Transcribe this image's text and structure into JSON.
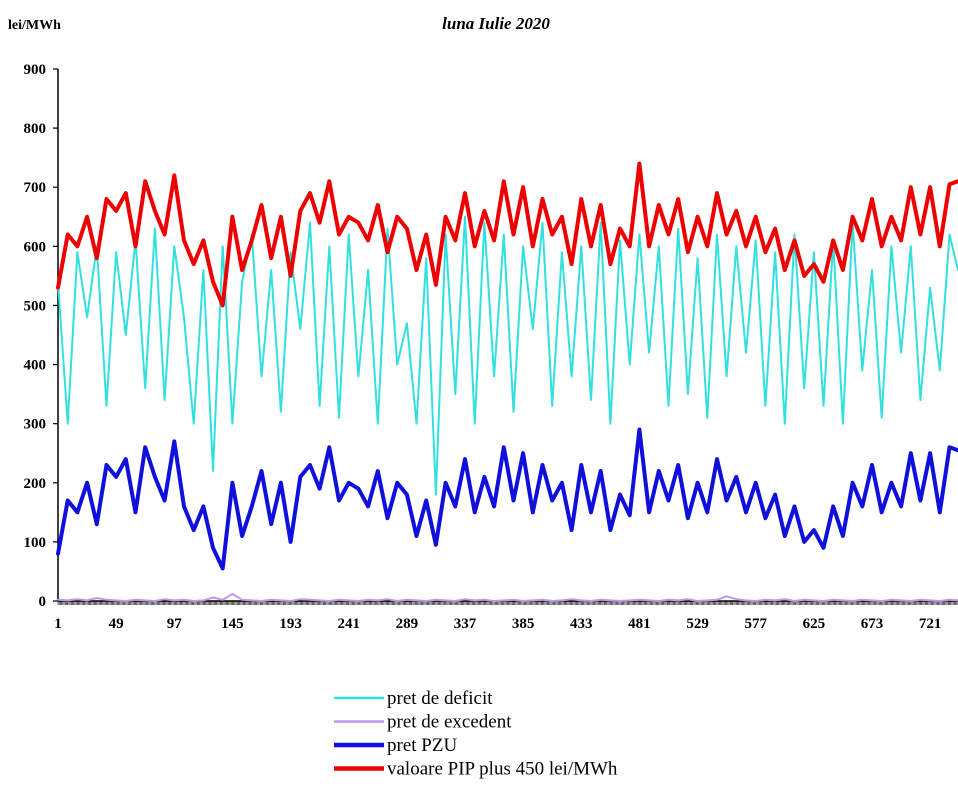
{
  "chart_data": {
    "type": "line",
    "title": "luna  Iulie 2020",
    "ylabel": "lei/MWh",
    "xlabel": "",
    "ylim": [
      0,
      900
    ],
    "xlim": [
      1,
      744
    ],
    "yticks": [
      0,
      100,
      200,
      300,
      400,
      500,
      600,
      700,
      800,
      900
    ],
    "xticks": [
      1,
      49,
      97,
      145,
      193,
      241,
      289,
      337,
      385,
      433,
      481,
      529,
      577,
      625,
      673,
      721
    ],
    "grid": false,
    "legend_position": "bottom-center",
    "x": [
      1,
      9,
      17,
      25,
      33,
      41,
      49,
      57,
      65,
      73,
      81,
      89,
      97,
      105,
      113,
      121,
      129,
      137,
      145,
      153,
      161,
      169,
      177,
      185,
      193,
      201,
      209,
      217,
      225,
      233,
      241,
      249,
      257,
      265,
      273,
      281,
      289,
      297,
      305,
      313,
      321,
      329,
      337,
      345,
      353,
      361,
      369,
      377,
      385,
      393,
      401,
      409,
      417,
      425,
      433,
      441,
      449,
      457,
      465,
      473,
      481,
      489,
      497,
      505,
      513,
      521,
      529,
      537,
      545,
      553,
      561,
      569,
      577,
      585,
      593,
      601,
      609,
      617,
      625,
      633,
      641,
      649,
      657,
      665,
      673,
      681,
      689,
      697,
      705,
      713,
      721,
      729,
      737,
      744
    ],
    "series": [
      {
        "name": "pret de deficit",
        "color": "#33e0e0",
        "width": 2,
        "values": [
          540,
          300,
          590,
          480,
          600,
          330,
          590,
          450,
          610,
          360,
          630,
          340,
          600,
          480,
          300,
          560,
          220,
          600,
          300,
          540,
          620,
          380,
          560,
          320,
          590,
          460,
          640,
          330,
          600,
          310,
          620,
          380,
          560,
          300,
          630,
          400,
          470,
          300,
          580,
          180,
          620,
          350,
          650,
          300,
          640,
          380,
          620,
          320,
          600,
          460,
          640,
          330,
          590,
          380,
          600,
          340,
          640,
          300,
          610,
          400,
          620,
          420,
          600,
          330,
          630,
          350,
          580,
          310,
          620,
          380,
          600,
          420,
          610,
          330,
          590,
          300,
          620,
          360,
          590,
          330,
          610,
          300,
          640,
          390,
          560,
          310,
          600,
          420,
          600,
          340,
          530,
          390,
          620,
          560
        ]
      },
      {
        "name": "pret de excedent",
        "color": "#bb99ee",
        "width": 2,
        "values": [
          2,
          1,
          3,
          1,
          5,
          2,
          1,
          0,
          2,
          1,
          0,
          3,
          1,
          2,
          0,
          1,
          6,
          2,
          12,
          2,
          1,
          0,
          2,
          1,
          0,
          3,
          2,
          1,
          0,
          2,
          1,
          0,
          2,
          1,
          3,
          0,
          2,
          1,
          0,
          2,
          1,
          0,
          3,
          1,
          2,
          0,
          1,
          2,
          0,
          1,
          2,
          0,
          1,
          3,
          1,
          0,
          2,
          1,
          0,
          1,
          2,
          1,
          0,
          2,
          1,
          3,
          0,
          1,
          2,
          8,
          3,
          1,
          0,
          2,
          1,
          3,
          0,
          2,
          1,
          0,
          2,
          1,
          0,
          2,
          1,
          0,
          2,
          1,
          0,
          2,
          1,
          0,
          2,
          1
        ]
      },
      {
        "name": "pret PZU",
        "color": "#1010dd",
        "width": 4,
        "values": [
          80,
          170,
          150,
          200,
          130,
          230,
          210,
          240,
          150,
          260,
          210,
          170,
          270,
          160,
          120,
          160,
          90,
          55,
          200,
          110,
          160,
          220,
          130,
          200,
          100,
          210,
          230,
          190,
          260,
          170,
          200,
          190,
          160,
          220,
          140,
          200,
          180,
          110,
          170,
          95,
          200,
          160,
          240,
          150,
          210,
          160,
          260,
          170,
          250,
          150,
          230,
          170,
          200,
          120,
          230,
          150,
          220,
          120,
          180,
          145,
          290,
          150,
          220,
          170,
          230,
          140,
          200,
          150,
          240,
          170,
          210,
          150,
          200,
          140,
          180,
          110,
          160,
          100,
          120,
          90,
          160,
          110,
          200,
          160,
          230,
          150,
          200,
          160,
          250,
          170,
          250,
          150,
          260,
          255
        ]
      },
      {
        "name": "valoare PIP plus 450 lei/MWh",
        "color": "#ee0000",
        "width": 4,
        "values": [
          530,
          620,
          600,
          650,
          580,
          680,
          660,
          690,
          600,
          710,
          660,
          620,
          720,
          610,
          570,
          610,
          540,
          500,
          650,
          560,
          610,
          670,
          580,
          650,
          550,
          660,
          690,
          640,
          710,
          620,
          650,
          640,
          610,
          670,
          590,
          650,
          630,
          560,
          620,
          535,
          650,
          610,
          690,
          600,
          660,
          610,
          710,
          620,
          700,
          600,
          680,
          620,
          650,
          570,
          680,
          600,
          670,
          570,
          630,
          600,
          740,
          600,
          670,
          620,
          680,
          590,
          650,
          600,
          690,
          620,
          660,
          600,
          650,
          590,
          630,
          560,
          610,
          550,
          570,
          540,
          610,
          560,
          650,
          610,
          680,
          600,
          650,
          610,
          700,
          620,
          700,
          600,
          705,
          710
        ]
      }
    ]
  }
}
